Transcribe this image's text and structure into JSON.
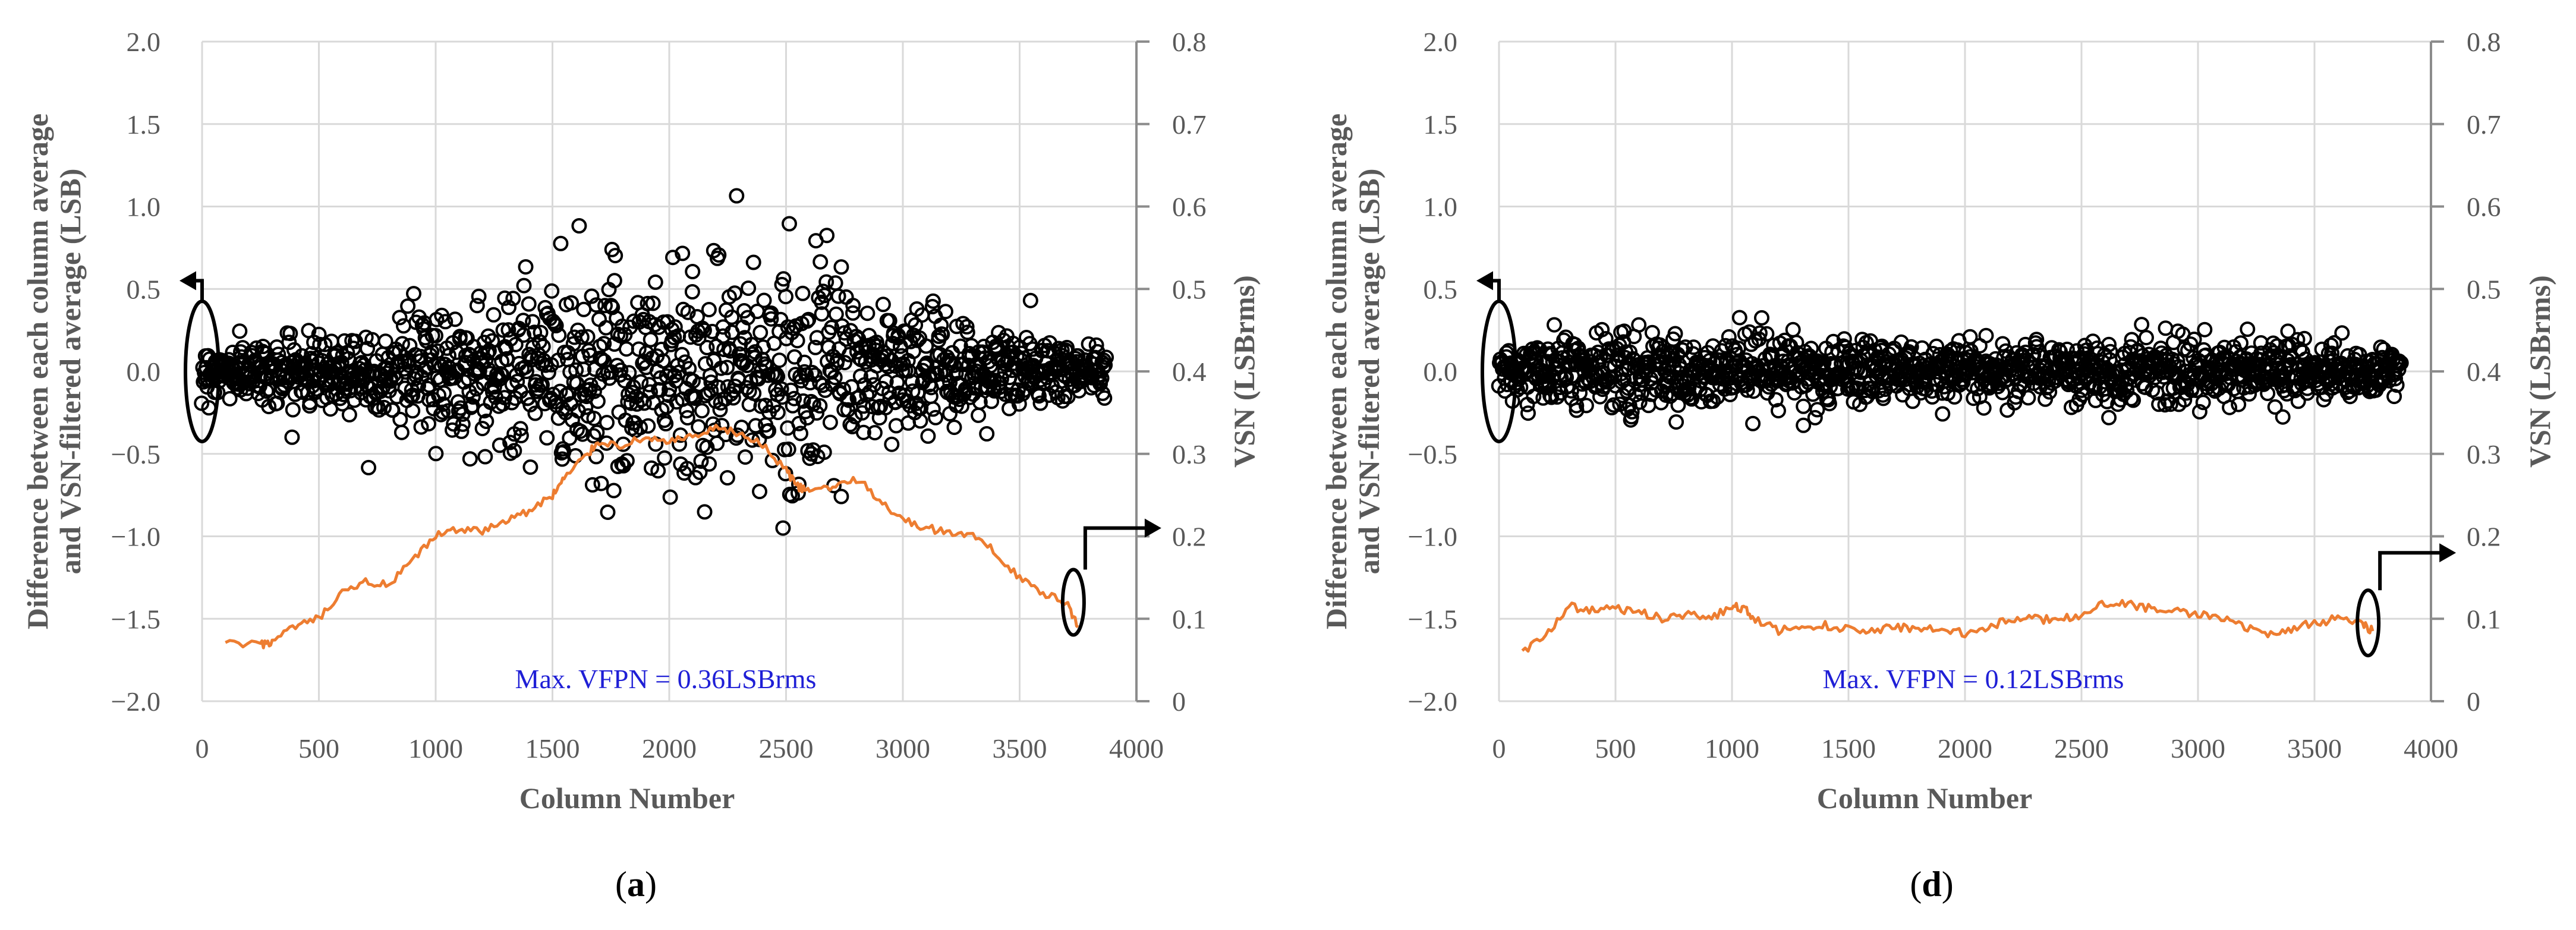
{
  "chart_data": [
    {
      "type": "scatter",
      "panel_label": {
        "open": "(",
        "letter": "a",
        "close": ")"
      },
      "xlabel": "Column Number",
      "ylabel": [
        "Difference between each column average",
        "and VSN-filtered average (LSB)"
      ],
      "y2label": "VSN (LSBrms)",
      "xlim": [
        0,
        4000
      ],
      "ylim": [
        -2.0,
        2.0
      ],
      "y2lim": [
        0,
        0.8
      ],
      "x_ticks": [
        "0",
        "500",
        "1000",
        "1500",
        "2000",
        "2500",
        "3000",
        "3500",
        "4000"
      ],
      "y_ticks": [
        "2.0",
        "1.5",
        "1.0",
        "0.5",
        "0.0",
        "−0.5",
        "−1.0",
        "−1.5",
        "−2.0"
      ],
      "y2_ticks": [
        "0.8",
        "0.7",
        "0.6",
        "0.5",
        "0.4",
        "0.3",
        "0.2",
        "0.1",
        "0"
      ],
      "annotation": "Max. VFPN = 0.36LSBrms",
      "scatter_series": {
        "name": "Difference between each column average and VSN-filtered average",
        "axis": "left",
        "x_range": [
          0,
          3870
        ],
        "sigma_profile_x": [
          0,
          400,
          800,
          1200,
          1500,
          1800,
          2000,
          2200,
          2500,
          2800,
          3200,
          3600,
          3870
        ],
        "sigma_profile_y": [
          0.07,
          0.1,
          0.15,
          0.22,
          0.3,
          0.35,
          0.36,
          0.35,
          0.3,
          0.24,
          0.16,
          0.12,
          0.06
        ],
        "n_points": 1300
      },
      "line_series": {
        "name": "VSN",
        "axis": "right",
        "color": "#ed7d31",
        "x": [
          100,
          250,
          300,
          400,
          500,
          600,
          700,
          800,
          900,
          1000,
          1100,
          1200,
          1300,
          1400,
          1500,
          1550,
          1650,
          1700,
          1800,
          1900,
          2000,
          2100,
          2200,
          2300,
          2400,
          2500,
          2550,
          2600,
          2700,
          2800,
          2900,
          3000,
          3100,
          3200,
          3300,
          3400,
          3500,
          3600,
          3700,
          3750
        ],
        "y": [
          0.07,
          0.068,
          0.072,
          0.09,
          0.1,
          0.13,
          0.145,
          0.14,
          0.17,
          0.2,
          0.21,
          0.205,
          0.22,
          0.23,
          0.25,
          0.27,
          0.3,
          0.315,
          0.31,
          0.32,
          0.315,
          0.32,
          0.33,
          0.325,
          0.31,
          0.28,
          0.26,
          0.255,
          0.26,
          0.27,
          0.245,
          0.22,
          0.21,
          0.205,
          0.2,
          0.18,
          0.15,
          0.13,
          0.12,
          0.09
        ]
      },
      "arrows": [
        {
          "points_to": "left axis",
          "marker": "ellipse",
          "at": [
            0,
            0.0
          ]
        },
        {
          "points_to": "right axis",
          "marker": "ellipse",
          "at": [
            3730,
            0.12
          ]
        }
      ]
    },
    {
      "type": "scatter",
      "panel_label": {
        "open": "(",
        "letter": "d",
        "close": ")"
      },
      "xlabel": "Column Number",
      "ylabel": [
        "Difference between each column average",
        "and VSN-filtered average (LSB)"
      ],
      "y2label": "VSN  (LSBrms)",
      "xlim": [
        0,
        4000
      ],
      "ylim": [
        -2.0,
        2.0
      ],
      "y2lim": [
        0,
        0.8
      ],
      "x_ticks": [
        "0",
        "500",
        "1000",
        "1500",
        "2000",
        "2500",
        "3000",
        "3500",
        "4000"
      ],
      "y_ticks": [
        "2.0",
        "1.5",
        "1.0",
        "0.5",
        "0.0",
        "−0.5",
        "−1.0",
        "−1.5",
        "−2.0"
      ],
      "y2_ticks": [
        "0.8",
        "0.7",
        "0.6",
        "0.5",
        "0.4",
        "0.3",
        "0.2",
        "0.1",
        "0"
      ],
      "annotation": "Max. VFPN = 0.12LSBrms",
      "scatter_series": {
        "name": "Difference between each column average and VSN-filtered average",
        "axis": "left",
        "x_range": [
          0,
          3870
        ],
        "sigma_profile_x": [
          0,
          500,
          1000,
          1500,
          2000,
          2500,
          3000,
          3500,
          3870
        ],
        "sigma_profile_y": [
          0.08,
          0.11,
          0.12,
          0.1,
          0.09,
          0.1,
          0.1,
          0.09,
          0.07
        ],
        "n_points": 1300
      },
      "line_series": {
        "name": "VSN",
        "axis": "right",
        "color": "#ed7d31",
        "x": [
          100,
          200,
          300,
          400,
          500,
          600,
          700,
          800,
          900,
          1000,
          1050,
          1100,
          1200,
          1300,
          1400,
          1500,
          1600,
          1700,
          1800,
          1900,
          2000,
          2100,
          2200,
          2300,
          2400,
          2500,
          2600,
          2700,
          2800,
          2900,
          3000,
          3100,
          3200,
          3300,
          3400,
          3500,
          3600,
          3700,
          3750
        ],
        "y": [
          0.06,
          0.08,
          0.115,
          0.11,
          0.112,
          0.108,
          0.1,
          0.105,
          0.1,
          0.115,
          0.112,
          0.1,
          0.085,
          0.09,
          0.092,
          0.088,
          0.085,
          0.09,
          0.088,
          0.09,
          0.082,
          0.09,
          0.1,
          0.1,
          0.098,
          0.105,
          0.12,
          0.118,
          0.112,
          0.11,
          0.105,
          0.1,
          0.09,
          0.08,
          0.088,
          0.095,
          0.1,
          0.095,
          0.085
        ]
      },
      "arrows": [
        {
          "points_to": "left axis",
          "marker": "ellipse",
          "at": [
            0,
            0.0
          ]
        },
        {
          "points_to": "right axis",
          "marker": "ellipse",
          "at": [
            3730,
            0.095
          ]
        }
      ]
    }
  ]
}
